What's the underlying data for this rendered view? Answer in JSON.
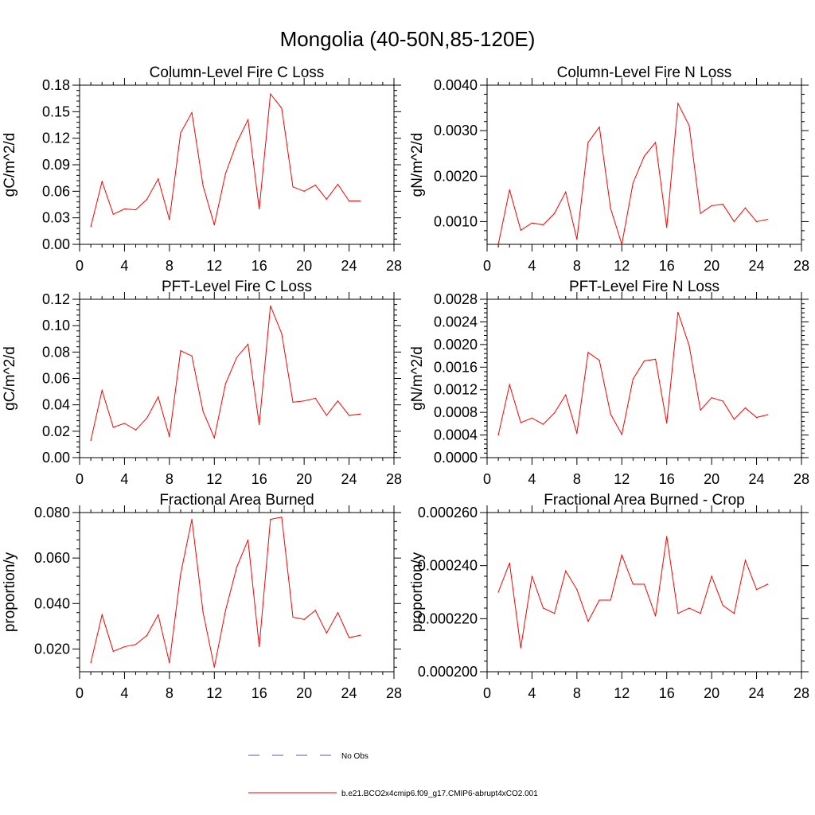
{
  "figure_title": "Mongolia (40-50N,85-120E)",
  "colors": {
    "series": "#ff0000",
    "obs": "#5a5ab4",
    "axis": "#000000"
  },
  "legend": [
    {
      "label": "No Obs",
      "style": "dashed",
      "color": "#5a5ab4"
    },
    {
      "label": "b.e21.BCO2x4cmip6.f09_g17.CMIP6-abrupt4xCO2.001",
      "style": "solid",
      "color": "#ff0000"
    }
  ],
  "chart_data": [
    {
      "type": "line",
      "title": "Column-Level Fire C Loss",
      "ylabel": "gC/m^2/d",
      "xlim": [
        0,
        28
      ],
      "ylim": [
        0,
        0.18
      ],
      "xticks": [
        0,
        4,
        8,
        12,
        16,
        20,
        24,
        28
      ],
      "xtick_labels": [
        "0",
        "4",
        "8",
        "12",
        "16",
        "20",
        "24",
        "28"
      ],
      "yticks": [
        0,
        0.03,
        0.06,
        0.09,
        0.12,
        0.15,
        0.18
      ],
      "ytick_labels": [
        "0.00",
        "0.03",
        "0.06",
        "0.09",
        "0.12",
        "0.15",
        "0.18"
      ],
      "x": [
        1,
        2,
        3,
        4,
        5,
        6,
        7,
        8,
        9,
        10,
        11,
        12,
        13,
        14,
        15,
        16,
        17,
        18,
        19,
        20,
        21,
        22,
        23,
        24,
        25
      ],
      "series": [
        {
          "name": "b.e21.BCO2x4cmip6.f09_g17.CMIP6-abrupt4xCO2.001",
          "values": [
            0.02,
            0.071,
            0.034,
            0.04,
            0.039,
            0.051,
            0.074,
            0.028,
            0.126,
            0.149,
            0.066,
            0.022,
            0.08,
            0.115,
            0.141,
            0.04,
            0.17,
            0.154,
            0.065,
            0.06,
            0.067,
            0.051,
            0.068,
            0.049,
            0.049
          ]
        }
      ]
    },
    {
      "type": "line",
      "title": "Column-Level Fire N Loss",
      "ylabel": "gN/m^2/d",
      "xlim": [
        0,
        28
      ],
      "ylim": [
        0.0005,
        0.004
      ],
      "xticks": [
        0,
        4,
        8,
        12,
        16,
        20,
        24,
        28
      ],
      "xtick_labels": [
        "0",
        "4",
        "8",
        "12",
        "16",
        "20",
        "24",
        "28"
      ],
      "yticks": [
        0.001,
        0.002,
        0.003,
        0.004
      ],
      "ytick_labels": [
        "0.0010",
        "0.0020",
        "0.0030",
        "0.0040"
      ],
      "x": [
        1,
        2,
        3,
        4,
        5,
        6,
        7,
        8,
        9,
        10,
        11,
        12,
        13,
        14,
        15,
        16,
        17,
        18,
        19,
        20,
        21,
        22,
        23,
        24,
        25
      ],
      "series": [
        {
          "name": "b.e21.BCO2x4cmip6.f09_g17.CMIP6-abrupt4xCO2.001",
          "values": [
            0.0005,
            0.0017,
            0.00081,
            0.00097,
            0.00093,
            0.00118,
            0.00165,
            0.00061,
            0.00274,
            0.00308,
            0.00129,
            0.0005,
            0.00185,
            0.00244,
            0.00274,
            0.00087,
            0.0036,
            0.00311,
            0.00118,
            0.00135,
            0.00138,
            0.001,
            0.0013,
            0.001,
            0.00105
          ]
        }
      ]
    },
    {
      "type": "line",
      "title": "PFT-Level Fire C Loss",
      "ylabel": "gC/m^2/d",
      "xlim": [
        0,
        28
      ],
      "ylim": [
        0,
        0.12
      ],
      "xticks": [
        0,
        4,
        8,
        12,
        16,
        20,
        24,
        28
      ],
      "xtick_labels": [
        "0",
        "4",
        "8",
        "12",
        "16",
        "20",
        "24",
        "28"
      ],
      "yticks": [
        0,
        0.02,
        0.04,
        0.06,
        0.08,
        0.1,
        0.12
      ],
      "ytick_labels": [
        "0.00",
        "0.02",
        "0.04",
        "0.06",
        "0.08",
        "0.10",
        "0.12"
      ],
      "x": [
        1,
        2,
        3,
        4,
        5,
        6,
        7,
        8,
        9,
        10,
        11,
        12,
        13,
        14,
        15,
        16,
        17,
        18,
        19,
        20,
        21,
        22,
        23,
        24,
        25
      ],
      "series": [
        {
          "name": "b.e21.BCO2x4cmip6.f09_g17.CMIP6-abrupt4xCO2.001",
          "values": [
            0.013,
            0.051,
            0.023,
            0.026,
            0.021,
            0.03,
            0.046,
            0.016,
            0.081,
            0.077,
            0.035,
            0.015,
            0.056,
            0.076,
            0.086,
            0.025,
            0.115,
            0.094,
            0.042,
            0.043,
            0.045,
            0.032,
            0.043,
            0.032,
            0.033
          ]
        }
      ]
    },
    {
      "type": "line",
      "title": "PFT-Level Fire N Loss",
      "ylabel": "gN/m^2/d",
      "xlim": [
        0,
        28
      ],
      "ylim": [
        0,
        0.0028
      ],
      "xticks": [
        0,
        4,
        8,
        12,
        16,
        20,
        24,
        28
      ],
      "xtick_labels": [
        "0",
        "4",
        "8",
        "12",
        "16",
        "20",
        "24",
        "28"
      ],
      "yticks": [
        0,
        0.0004,
        0.0008,
        0.0012,
        0.0016,
        0.002,
        0.0024,
        0.0028
      ],
      "ytick_labels": [
        "0.0000",
        "0.0004",
        "0.0008",
        "0.0012",
        "0.0016",
        "0.0020",
        "0.0024",
        "0.0028"
      ],
      "x": [
        1,
        2,
        3,
        4,
        5,
        6,
        7,
        8,
        9,
        10,
        11,
        12,
        13,
        14,
        15,
        16,
        17,
        18,
        19,
        20,
        21,
        22,
        23,
        24,
        25
      ],
      "series": [
        {
          "name": "b.e21.BCO2x4cmip6.f09_g17.CMIP6-abrupt4xCO2.001",
          "values": [
            0.0004,
            0.00129,
            0.00062,
            0.0007,
            0.00059,
            0.00079,
            0.00111,
            0.00043,
            0.00186,
            0.00172,
            0.00077,
            0.00041,
            0.00139,
            0.00171,
            0.00174,
            0.00061,
            0.00257,
            0.00198,
            0.00084,
            0.00106,
            0.001,
            0.00068,
            0.00088,
            0.00071,
            0.00076
          ]
        }
      ]
    },
    {
      "type": "line",
      "title": "Fractional Area Burned",
      "ylabel": "proportion/y",
      "xlim": [
        0,
        28
      ],
      "ylim": [
        0.01,
        0.08
      ],
      "xticks": [
        0,
        4,
        8,
        12,
        16,
        20,
        24,
        28
      ],
      "xtick_labels": [
        "0",
        "4",
        "8",
        "12",
        "16",
        "20",
        "24",
        "28"
      ],
      "yticks": [
        0.02,
        0.04,
        0.06,
        0.08
      ],
      "ytick_labels": [
        "0.020",
        "0.040",
        "0.060",
        "0.080"
      ],
      "x": [
        1,
        2,
        3,
        4,
        5,
        6,
        7,
        8,
        9,
        10,
        11,
        12,
        13,
        14,
        15,
        16,
        17,
        18,
        19,
        20,
        21,
        22,
        23,
        24,
        25
      ],
      "series": [
        {
          "name": "b.e21.BCO2x4cmip6.f09_g17.CMIP6-abrupt4xCO2.001",
          "values": [
            0.014,
            0.035,
            0.019,
            0.021,
            0.022,
            0.026,
            0.035,
            0.014,
            0.053,
            0.077,
            0.036,
            0.012,
            0.037,
            0.056,
            0.068,
            0.021,
            0.077,
            0.078,
            0.034,
            0.033,
            0.037,
            0.027,
            0.036,
            0.025,
            0.026
          ]
        }
      ]
    },
    {
      "type": "line",
      "title": "Fractional Area Burned - Crop",
      "ylabel": "proportion/y",
      "xlim": [
        0,
        28
      ],
      "ylim": [
        0.0002,
        0.00026
      ],
      "xticks": [
        0,
        4,
        8,
        12,
        16,
        20,
        24,
        28
      ],
      "xtick_labels": [
        "0",
        "4",
        "8",
        "12",
        "16",
        "20",
        "24",
        "28"
      ],
      "yticks": [
        0.0002,
        0.00022,
        0.00024,
        0.00026
      ],
      "ytick_labels": [
        "0.000200",
        "0.000220",
        "0.000240",
        "0.000260"
      ],
      "x": [
        1,
        2,
        3,
        4,
        5,
        6,
        7,
        8,
        9,
        10,
        11,
        12,
        13,
        14,
        15,
        16,
        17,
        18,
        19,
        20,
        21,
        22,
        23,
        24,
        25
      ],
      "series": [
        {
          "name": "b.e21.BCO2x4cmip6.f09_g17.CMIP6-abrupt4xCO2.001",
          "values": [
            0.00023,
            0.000241,
            0.000209,
            0.000236,
            0.000224,
            0.000222,
            0.000238,
            0.000231,
            0.000219,
            0.000227,
            0.000227,
            0.000244,
            0.000233,
            0.000233,
            0.000221,
            0.000251,
            0.000222,
            0.000224,
            0.000222,
            0.000236,
            0.000225,
            0.000222,
            0.000242,
            0.000231,
            0.000233
          ]
        }
      ]
    }
  ]
}
